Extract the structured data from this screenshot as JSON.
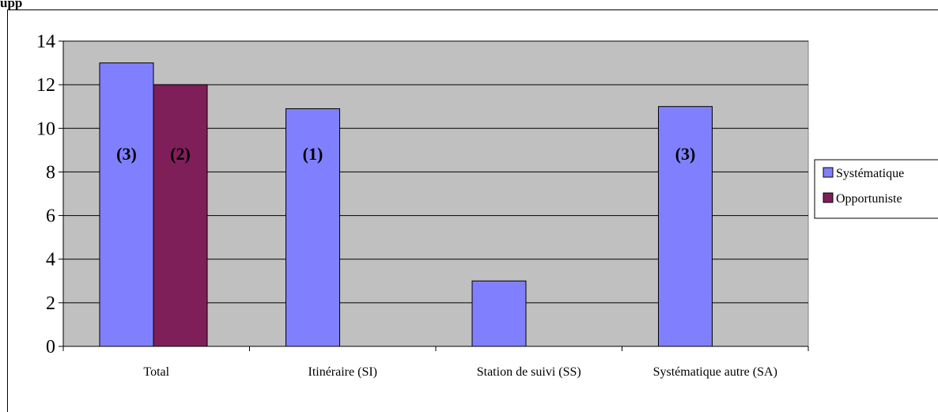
{
  "heading": "upp",
  "chart_data": {
    "type": "bar",
    "categories": [
      "Total",
      "Itinéraire (SI)",
      "Station de suivi (SS)",
      "Systématique autre (SA)"
    ],
    "series": [
      {
        "name": "Systématique",
        "color": "#8080ff",
        "values": [
          13,
          10.9,
          3,
          11
        ]
      },
      {
        "name": "Opportuniste",
        "color": "#7f1f5a",
        "values": [
          12,
          null,
          null,
          null
        ]
      }
    ],
    "bar_labels": [
      {
        "series": 0,
        "category": 0,
        "text": "(3)"
      },
      {
        "series": 1,
        "category": 0,
        "text": "(2)"
      },
      {
        "series": 0,
        "category": 1,
        "text": "(1)"
      },
      {
        "series": 0,
        "category": 3,
        "text": "(3)"
      }
    ],
    "ylim": [
      0,
      14
    ],
    "yticks": [
      0,
      2,
      4,
      6,
      8,
      10,
      12,
      14
    ],
    "grid": true,
    "legend_position": "right",
    "plot_background": "#c0c0c0"
  }
}
